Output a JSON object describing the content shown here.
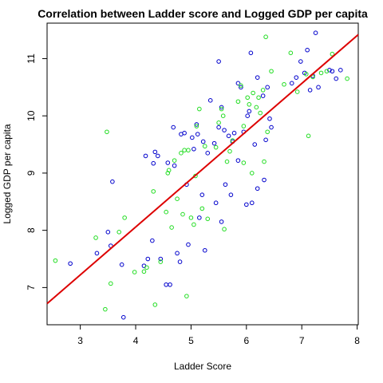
{
  "chart_data": {
    "type": "scatter",
    "title": "Correlation between Ladder score and Logged GDP per capita",
    "xlabel": "Ladder Score",
    "ylabel": "Logged GDP per capita",
    "xlim": [
      2.4,
      8.02
    ],
    "ylim": [
      6.35,
      11.62
    ],
    "xticks": [
      3,
      4,
      5,
      6,
      7,
      8
    ],
    "yticks": [
      7,
      8,
      9,
      10,
      11
    ],
    "grid": false,
    "legend": "none",
    "colors": {
      "series_a": "#0000cc",
      "series_b": "#22dd22",
      "regression": "#dd0000"
    },
    "regression_line": {
      "x": [
        2.4,
        8.02
      ],
      "y": [
        6.72,
        11.42
      ]
    },
    "series": [
      {
        "color": "#0000cc",
        "points": [
          [
            2.82,
            7.42
          ],
          [
            3.3,
            7.6
          ],
          [
            3.5,
            7.97
          ],
          [
            3.55,
            7.73
          ],
          [
            3.58,
            8.85
          ],
          [
            3.75,
            7.4
          ],
          [
            3.78,
            6.48
          ],
          [
            4.15,
            7.38
          ],
          [
            4.18,
            9.3
          ],
          [
            4.22,
            7.5
          ],
          [
            4.3,
            7.82
          ],
          [
            4.32,
            9.17
          ],
          [
            4.35,
            9.37
          ],
          [
            4.4,
            9.3
          ],
          [
            4.45,
            7.5
          ],
          [
            4.55,
            7.05
          ],
          [
            4.58,
            9.18
          ],
          [
            4.62,
            7.05
          ],
          [
            4.68,
            9.8
          ],
          [
            4.7,
            9.13
          ],
          [
            4.75,
            7.6
          ],
          [
            4.8,
            7.45
          ],
          [
            4.82,
            9.68
          ],
          [
            4.88,
            9.7
          ],
          [
            4.92,
            8.8
          ],
          [
            4.95,
            7.75
          ],
          [
            5.02,
            9.62
          ],
          [
            5.05,
            9.42
          ],
          [
            5.1,
            9.85
          ],
          [
            5.12,
            9.68
          ],
          [
            5.15,
            8.22
          ],
          [
            5.2,
            8.62
          ],
          [
            5.22,
            9.55
          ],
          [
            5.25,
            7.65
          ],
          [
            5.3,
            9.35
          ],
          [
            5.35,
            10.27
          ],
          [
            5.42,
            9.52
          ],
          [
            5.45,
            8.48
          ],
          [
            5.5,
            10.95
          ],
          [
            5.5,
            9.8
          ],
          [
            5.55,
            10.15
          ],
          [
            5.55,
            8.15
          ],
          [
            5.6,
            9.75
          ],
          [
            5.62,
            8.8
          ],
          [
            5.68,
            9.65
          ],
          [
            5.72,
            8.62
          ],
          [
            5.75,
            9.55
          ],
          [
            5.78,
            9.7
          ],
          [
            5.85,
            9.22
          ],
          [
            5.85,
            10.57
          ],
          [
            5.9,
            10.5
          ],
          [
            5.95,
            9.72
          ],
          [
            6.0,
            8.45
          ],
          [
            6.02,
            10.0
          ],
          [
            6.05,
            10.08
          ],
          [
            6.08,
            11.1
          ],
          [
            6.1,
            8.48
          ],
          [
            6.15,
            9.5
          ],
          [
            6.2,
            10.67
          ],
          [
            6.2,
            8.73
          ],
          [
            6.3,
            10.35
          ],
          [
            6.32,
            8.88
          ],
          [
            6.35,
            9.58
          ],
          [
            6.38,
            10.5
          ],
          [
            6.42,
            9.95
          ],
          [
            6.45,
            9.8
          ],
          [
            6.82,
            10.57
          ],
          [
            6.9,
            10.67
          ],
          [
            6.98,
            10.95
          ],
          [
            7.05,
            10.75
          ],
          [
            7.1,
            11.15
          ],
          [
            7.15,
            10.45
          ],
          [
            7.2,
            10.7
          ],
          [
            7.25,
            11.45
          ],
          [
            7.3,
            10.5
          ],
          [
            7.5,
            10.8
          ],
          [
            7.55,
            10.78
          ],
          [
            7.62,
            10.65
          ],
          [
            7.7,
            10.8
          ]
        ]
      },
      {
        "color": "#22dd22",
        "points": [
          [
            2.55,
            7.47
          ],
          [
            3.28,
            7.87
          ],
          [
            3.45,
            6.62
          ],
          [
            3.48,
            9.72
          ],
          [
            3.55,
            7.07
          ],
          [
            3.7,
            7.97
          ],
          [
            3.8,
            8.22
          ],
          [
            3.98,
            7.27
          ],
          [
            4.15,
            7.28
          ],
          [
            4.2,
            7.35
          ],
          [
            4.32,
            8.68
          ],
          [
            4.35,
            6.7
          ],
          [
            4.45,
            7.45
          ],
          [
            4.55,
            8.32
          ],
          [
            4.58,
            9.0
          ],
          [
            4.6,
            9.05
          ],
          [
            4.65,
            8.05
          ],
          [
            4.7,
            9.22
          ],
          [
            4.75,
            8.55
          ],
          [
            4.82,
            9.35
          ],
          [
            4.85,
            8.28
          ],
          [
            4.88,
            9.4
          ],
          [
            4.92,
            6.85
          ],
          [
            4.95,
            9.4
          ],
          [
            5.0,
            8.22
          ],
          [
            5.05,
            8.1
          ],
          [
            5.08,
            8.95
          ],
          [
            5.1,
            9.82
          ],
          [
            5.15,
            10.12
          ],
          [
            5.2,
            8.38
          ],
          [
            5.25,
            9.47
          ],
          [
            5.3,
            8.2
          ],
          [
            5.45,
            9.45
          ],
          [
            5.5,
            9.88
          ],
          [
            5.55,
            10.12
          ],
          [
            5.58,
            10.0
          ],
          [
            5.6,
            8.02
          ],
          [
            5.65,
            9.2
          ],
          [
            5.7,
            9.38
          ],
          [
            5.75,
            9.57
          ],
          [
            5.85,
            10.25
          ],
          [
            5.9,
            10.53
          ],
          [
            5.95,
            9.18
          ],
          [
            5.95,
            9.82
          ],
          [
            6.02,
            10.32
          ],
          [
            6.05,
            10.2
          ],
          [
            6.1,
            9.0
          ],
          [
            6.12,
            10.4
          ],
          [
            6.18,
            10.15
          ],
          [
            6.22,
            10.32
          ],
          [
            6.25,
            10.05
          ],
          [
            6.3,
            10.45
          ],
          [
            6.32,
            9.2
          ],
          [
            6.35,
            11.38
          ],
          [
            6.38,
            9.72
          ],
          [
            6.45,
            10.78
          ],
          [
            6.68,
            10.55
          ],
          [
            6.8,
            11.1
          ],
          [
            6.92,
            10.42
          ],
          [
            7.08,
            10.73
          ],
          [
            7.12,
            9.65
          ],
          [
            7.2,
            10.68
          ],
          [
            7.35,
            10.75
          ],
          [
            7.45,
            10.78
          ],
          [
            7.55,
            11.08
          ],
          [
            7.82,
            10.65
          ]
        ]
      }
    ]
  }
}
